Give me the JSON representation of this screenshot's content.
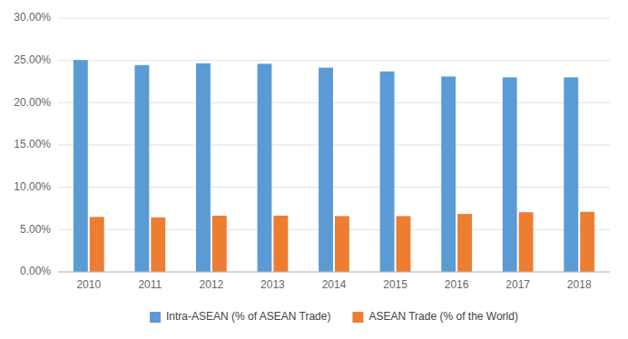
{
  "chart_data": {
    "type": "bar",
    "categories": [
      "2010",
      "2011",
      "2012",
      "2013",
      "2014",
      "2015",
      "2016",
      "2017",
      "2018"
    ],
    "series": [
      {
        "name": "Intra-ASEAN (% of ASEAN Trade)",
        "color": "#5B9BD5",
        "values": [
          0.2505,
          0.2445,
          0.2465,
          0.246,
          0.2415,
          0.237,
          0.231,
          0.23,
          0.23
        ]
      },
      {
        "name": "ASEAN Trade (% of the World)",
        "color": "#ED7D31",
        "values": [
          0.065,
          0.0645,
          0.0665,
          0.0665,
          0.066,
          0.066,
          0.0685,
          0.0705,
          0.071
        ]
      }
    ],
    "ylim": [
      0.0,
      0.3
    ],
    "yticks": [
      {
        "value": 0.0,
        "label": "0.00%"
      },
      {
        "value": 0.05,
        "label": "5.00%"
      },
      {
        "value": 0.1,
        "label": "10.00%"
      },
      {
        "value": 0.15,
        "label": "15.00%"
      },
      {
        "value": 0.2,
        "label": "20.00%"
      },
      {
        "value": 0.25,
        "label": "25.00%"
      },
      {
        "value": 0.3,
        "label": "30.00%"
      }
    ],
    "grid": true,
    "legend": "bottom"
  }
}
